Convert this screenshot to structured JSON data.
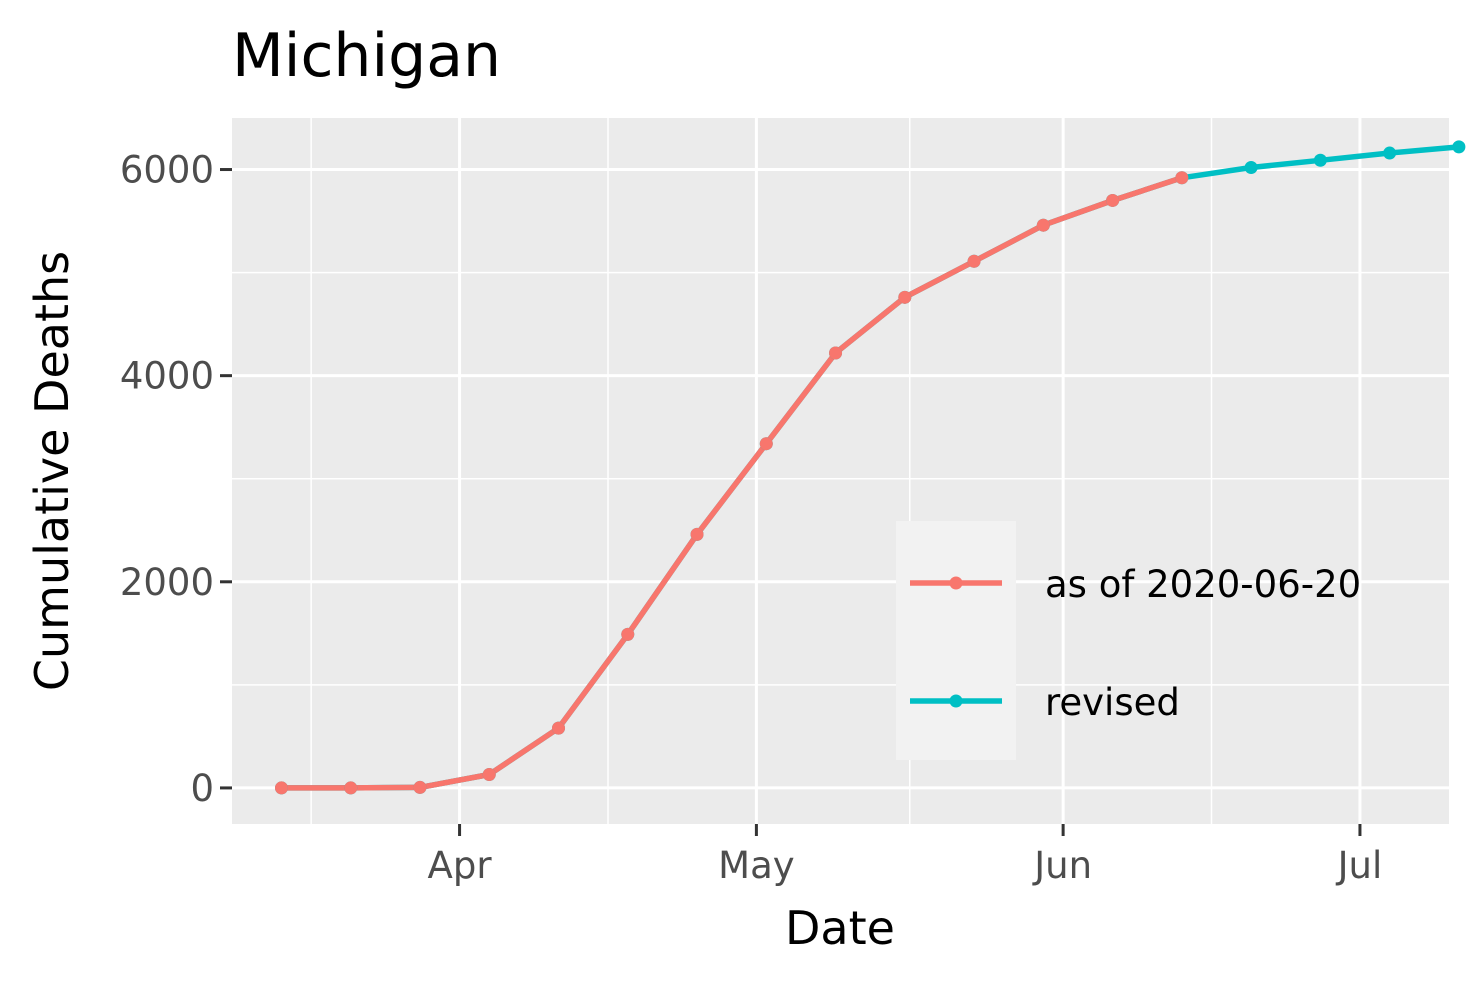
{
  "chart_data": {
    "type": "line",
    "title": "Michigan",
    "xlabel": "Date",
    "ylabel": "Cumulative Deaths",
    "x_ticks": [
      "2020-04-01",
      "2020-05-01",
      "2020-06-01",
      "2020-07-01"
    ],
    "x_tick_labels": [
      "Apr",
      "May",
      "Jun",
      "Jul"
    ],
    "y_ticks": [
      0,
      2000,
      4000,
      6000
    ],
    "y_tick_labels": [
      "0",
      "2000",
      "4000",
      "6000"
    ],
    "xlim": [
      "2020-03-09",
      "2020-07-10"
    ],
    "ylim": [
      -350,
      6500
    ],
    "grid": true,
    "legend_position": "bottom-right",
    "series": [
      {
        "name": "as of 2020-06-20",
        "color": "#F8766D",
        "x": [
          "2020-03-14",
          "2020-03-21",
          "2020-03-28",
          "2020-04-04",
          "2020-04-11",
          "2020-04-18",
          "2020-04-25",
          "2020-05-02",
          "2020-05-09",
          "2020-05-16",
          "2020-05-23",
          "2020-05-30",
          "2020-06-06",
          "2020-06-13"
        ],
        "values": [
          0,
          0,
          5,
          130,
          580,
          1490,
          2460,
          3340,
          4220,
          4760,
          5110,
          5460,
          5700,
          5920
        ]
      },
      {
        "name": "revised",
        "color": "#00BFC4",
        "x": [
          "2020-03-14",
          "2020-03-21",
          "2020-03-28",
          "2020-04-04",
          "2020-04-11",
          "2020-04-18",
          "2020-04-25",
          "2020-05-02",
          "2020-05-09",
          "2020-05-16",
          "2020-05-23",
          "2020-05-30",
          "2020-06-06",
          "2020-06-13",
          "2020-06-20",
          "2020-06-27",
          "2020-07-04",
          "2020-07-11"
        ],
        "values": [
          0,
          0,
          5,
          130,
          580,
          1490,
          2460,
          3340,
          4220,
          4760,
          5110,
          5460,
          5700,
          5920,
          6020,
          6090,
          6160,
          6220
        ]
      }
    ]
  }
}
